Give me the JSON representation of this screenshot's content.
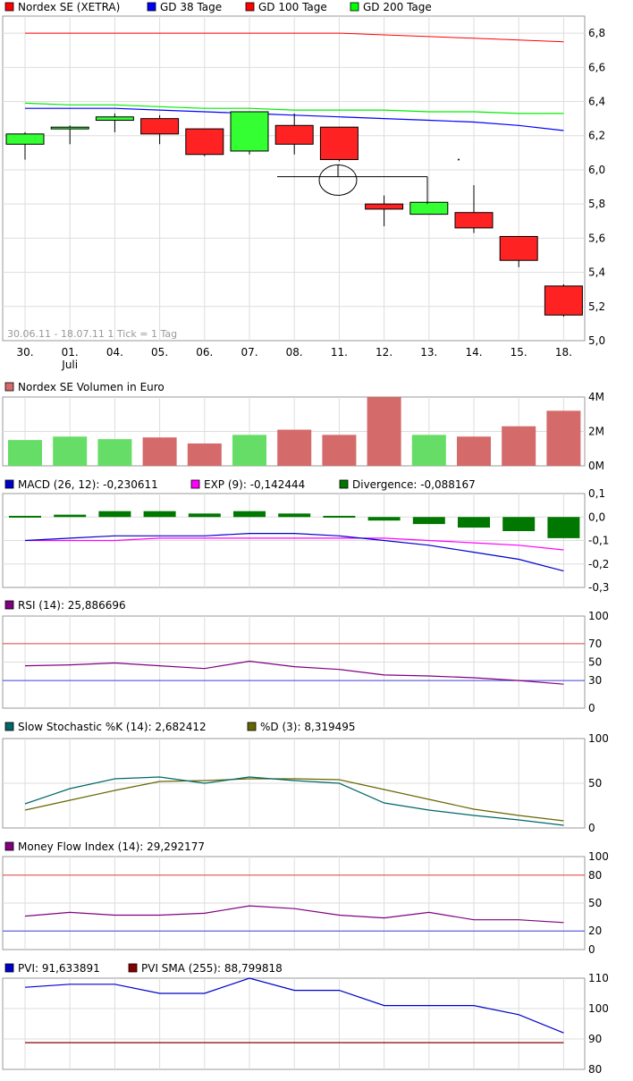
{
  "chart_data": [
    {
      "type": "candlestick",
      "legend": [
        {
          "label": "Nordex SE (XETRA)",
          "color": "#ff0000"
        },
        {
          "label": "GD 38 Tage",
          "color": "#0000ff"
        },
        {
          "label": "GD 100 Tage",
          "color": "#ff0000"
        },
        {
          "label": "GD 200 Tage",
          "color": "#00ff00"
        }
      ],
      "x_ticks": [
        "30.",
        "01.",
        "04.",
        "05.",
        "06.",
        "07.",
        "08.",
        "11.",
        "12.",
        "13.",
        "14.",
        "15.",
        "18."
      ],
      "x_subtick": "Juli",
      "date_range_label": "30.06.11 - 18.07.11   1 Tick = 1 Tag",
      "y_ticks": [
        "6,8",
        "6,6",
        "6,4",
        "6,2",
        "6,0",
        "5,8",
        "5,6",
        "5,4",
        "5,2",
        "5,0"
      ],
      "ylim": [
        5.0,
        6.9
      ],
      "candles": [
        {
          "date": "30.",
          "open": 6.15,
          "high": 6.22,
          "low": 6.06,
          "close": 6.21
        },
        {
          "date": "01.",
          "open": 6.24,
          "high": 6.26,
          "low": 6.15,
          "close": 6.25
        },
        {
          "date": "04.",
          "open": 6.29,
          "high": 6.33,
          "low": 6.22,
          "close": 6.31
        },
        {
          "date": "05.",
          "open": 6.3,
          "high": 6.32,
          "low": 6.15,
          "close": 6.21
        },
        {
          "date": "06.",
          "open": 6.24,
          "high": 6.24,
          "low": 6.08,
          "close": 6.09
        },
        {
          "date": "07.",
          "open": 6.11,
          "high": 6.34,
          "low": 6.09,
          "close": 6.34
        },
        {
          "date": "08.",
          "open": 6.26,
          "high": 6.33,
          "low": 6.09,
          "close": 6.15
        },
        {
          "date": "11.",
          "open": 6.25,
          "high": 6.25,
          "low": 6.05,
          "close": 6.06
        },
        {
          "date": "12.",
          "open": 5.8,
          "high": 5.85,
          "low": 5.67,
          "close": 5.77
        },
        {
          "date": "13.",
          "open": 5.74,
          "high": 5.8,
          "low": 5.74,
          "close": 5.81
        },
        {
          "date": "14.",
          "open": 5.75,
          "high": 5.91,
          "low": 5.63,
          "close": 5.66
        },
        {
          "date": "15.",
          "open": 5.61,
          "high": 5.61,
          "low": 5.43,
          "close": 5.47
        },
        {
          "date": "18.",
          "open": 5.32,
          "high": 5.33,
          "low": 5.14,
          "close": 5.15
        }
      ],
      "gd38": [
        6.36,
        6.36,
        6.36,
        6.35,
        6.34,
        6.33,
        6.32,
        6.31,
        6.3,
        6.29,
        6.28,
        6.26,
        6.23
      ],
      "gd100": [
        6.8,
        6.8,
        6.8,
        6.8,
        6.8,
        6.8,
        6.8,
        6.8,
        6.79,
        6.78,
        6.77,
        6.76,
        6.75
      ],
      "gd200": [
        6.39,
        6.38,
        6.38,
        6.37,
        6.36,
        6.36,
        6.35,
        6.35,
        6.35,
        6.34,
        6.34,
        6.33,
        6.33
      ]
    },
    {
      "type": "bar",
      "legend": [
        {
          "label": "Nordex SE Volumen in Euro",
          "color": "#d46a6a"
        }
      ],
      "y_ticks": [
        "4M",
        "2M",
        "0M"
      ],
      "ylim": [
        0,
        4
      ],
      "values": [
        1.5,
        1.7,
        1.55,
        1.65,
        1.3,
        1.8,
        2.1,
        1.8,
        4.0,
        1.8,
        1.7,
        2.3,
        3.2
      ],
      "up": [
        true,
        true,
        true,
        false,
        false,
        true,
        false,
        false,
        false,
        true,
        false,
        false,
        false
      ],
      "up_color": "#66dd66",
      "down_color": "#d46a6a"
    },
    {
      "type": "macd",
      "legend": [
        {
          "label": "MACD (26, 12): -0,230611",
          "color": "#0000cc"
        },
        {
          "label": "EXP (9): -0,142444",
          "color": "#ff00ff"
        },
        {
          "label": "Divergence: -0,088167",
          "color": "#007700"
        }
      ],
      "y_ticks": [
        "0,1",
        "0,0",
        "-0,1",
        "-0,2",
        "-0,3"
      ],
      "ylim": [
        -0.3,
        0.1
      ],
      "macd": [
        -0.1,
        -0.09,
        -0.08,
        -0.08,
        -0.08,
        -0.07,
        -0.07,
        -0.08,
        -0.1,
        -0.12,
        -0.15,
        -0.18,
        -0.23
      ],
      "exp": [
        -0.1,
        -0.1,
        -0.1,
        -0.09,
        -0.09,
        -0.09,
        -0.09,
        -0.09,
        -0.09,
        -0.1,
        -0.11,
        -0.12,
        -0.14
      ],
      "divergence": [
        0.005,
        0.01,
        0.025,
        0.025,
        0.015,
        0.025,
        0.015,
        0.005,
        -0.015,
        -0.03,
        -0.045,
        -0.06,
        -0.09
      ]
    },
    {
      "type": "line",
      "legend": [
        {
          "label": "RSI (14): 25,886696",
          "color": "#800080"
        }
      ],
      "y_ticks": [
        "100",
        "70",
        "50",
        "30",
        "0"
      ],
      "ylim": [
        0,
        100
      ],
      "ref_lines": [
        {
          "value": 70,
          "color": "#dd4444"
        },
        {
          "value": 30,
          "color": "#4444dd"
        }
      ],
      "values": [
        46,
        47,
        49,
        46,
        43,
        51,
        45,
        42,
        36,
        35,
        33,
        30,
        26
      ]
    },
    {
      "type": "line",
      "legend": [
        {
          "label": "Slow Stochastic %K (14): 2,682412",
          "color": "#006666"
        },
        {
          "label": "%D (3): 8,319495",
          "color": "#666600"
        }
      ],
      "y_ticks": [
        "100",
        "50",
        "0"
      ],
      "ylim": [
        0,
        100
      ],
      "k": [
        27,
        44,
        55,
        57,
        50,
        57,
        53,
        50,
        28,
        20,
        14,
        9,
        3
      ],
      "d": [
        20,
        31,
        42,
        52,
        53,
        55,
        55,
        54,
        43,
        32,
        21,
        14,
        8
      ]
    },
    {
      "type": "line",
      "legend": [
        {
          "label": "Money Flow Index (14): 29,292177",
          "color": "#800080"
        }
      ],
      "y_ticks": [
        "100",
        "80",
        "50",
        "20",
        "0"
      ],
      "ylim": [
        0,
        100
      ],
      "ref_lines": [
        {
          "value": 80,
          "color": "#dd4444"
        },
        {
          "value": 20,
          "color": "#4444dd"
        }
      ],
      "values": [
        36,
        40,
        37,
        37,
        39,
        47,
        44,
        37,
        34,
        40,
        32,
        32,
        29
      ]
    },
    {
      "type": "line",
      "legend": [
        {
          "label": "PVI: 91,633891",
          "color": "#0000cc"
        },
        {
          "label": "PVI SMA (255): 88,799818",
          "color": "#880000"
        }
      ],
      "y_ticks": [
        "110",
        "100",
        "90",
        "80"
      ],
      "ylim": [
        80,
        110
      ],
      "pvi": [
        107,
        108,
        108,
        105,
        105,
        110,
        106,
        106,
        101,
        101,
        101,
        98,
        92
      ],
      "pvi_sma": [
        88.8,
        88.8,
        88.8,
        88.8,
        88.8,
        88.8,
        88.8,
        88.8,
        88.8,
        88.8,
        88.8,
        88.8,
        88.8
      ]
    }
  ]
}
